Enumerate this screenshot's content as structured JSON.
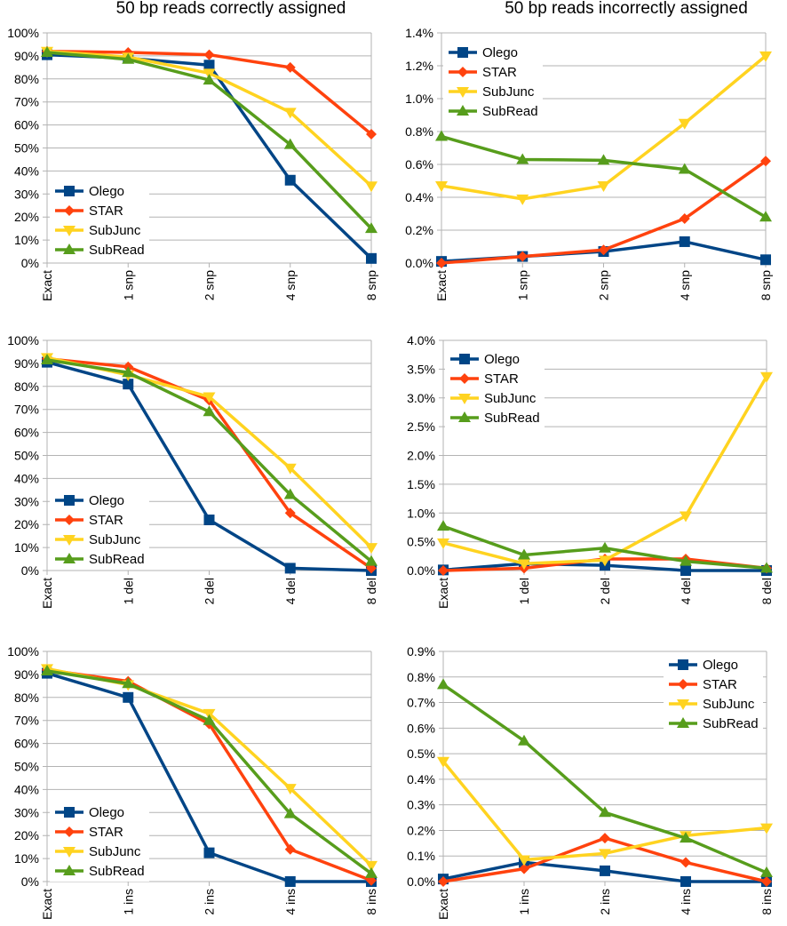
{
  "colors": {
    "Olego": "#004586",
    "STAR": "#ff420e",
    "SubJunc": "#ffd320",
    "SubRead": "#579d1c",
    "grid": "#b3b3b3"
  },
  "chart_data": [
    {
      "type": "line",
      "title": "50 bp reads correctly assigned",
      "categories": [
        "Exact",
        "1 snp",
        "2 snp",
        "4 snp",
        "8 snp"
      ],
      "ylim": [
        0,
        100
      ],
      "yticks": [
        "0%",
        "10%",
        "20%",
        "30%",
        "40%",
        "50%",
        "60%",
        "70%",
        "80%",
        "90%",
        "100%"
      ],
      "ystep": 10,
      "unit": "%",
      "grid": true,
      "legend_position": "bottom-left",
      "series": [
        {
          "name": "Olego",
          "marker": "square",
          "values": [
            90.5,
            89,
            86,
            36,
            2
          ]
        },
        {
          "name": "STAR",
          "marker": "diamond",
          "values": [
            92,
            91.5,
            90.5,
            85,
            56
          ]
        },
        {
          "name": "SubJunc",
          "marker": "triangle-down",
          "values": [
            92,
            89.5,
            82.5,
            65.5,
            33.5
          ]
        },
        {
          "name": "SubRead",
          "marker": "triangle-up",
          "values": [
            91.5,
            88.5,
            79.5,
            51.5,
            15
          ]
        }
      ]
    },
    {
      "type": "line",
      "title": "50 bp reads incorrectly assigned",
      "categories": [
        "Exact",
        "1 snp",
        "2 snp",
        "4 snp",
        "8 snp"
      ],
      "ylim": [
        0,
        1.4
      ],
      "yticks": [
        "0.0%",
        "0.2%",
        "0.4%",
        "0.6%",
        "0.8%",
        "1.0%",
        "1.2%",
        "1.4%"
      ],
      "ystep": 0.2,
      "unit": "%",
      "grid": true,
      "legend_position": "top-left",
      "series": [
        {
          "name": "Olego",
          "marker": "square",
          "values": [
            0.01,
            0.04,
            0.07,
            0.13,
            0.02
          ]
        },
        {
          "name": "STAR",
          "marker": "diamond",
          "values": [
            0.0,
            0.04,
            0.08,
            0.27,
            0.62
          ]
        },
        {
          "name": "SubJunc",
          "marker": "triangle-down",
          "values": [
            0.47,
            0.39,
            0.47,
            0.85,
            1.26
          ]
        },
        {
          "name": "SubRead",
          "marker": "triangle-up",
          "values": [
            0.77,
            0.63,
            0.625,
            0.57,
            0.28
          ]
        }
      ]
    },
    {
      "type": "line",
      "title": "",
      "categories": [
        "Exact",
        "1 del",
        "2 del",
        "4 del",
        "8 del"
      ],
      "ylim": [
        0,
        100
      ],
      "yticks": [
        "0%",
        "10%",
        "20%",
        "30%",
        "40%",
        "50%",
        "60%",
        "70%",
        "80%",
        "90%",
        "100%"
      ],
      "ystep": 10,
      "unit": "%",
      "grid": true,
      "legend_position": "bottom-left",
      "series": [
        {
          "name": "Olego",
          "marker": "square",
          "values": [
            90.5,
            81,
            22,
            1,
            0
          ]
        },
        {
          "name": "STAR",
          "marker": "diamond",
          "values": [
            92,
            88.5,
            74,
            25,
            1
          ]
        },
        {
          "name": "SubJunc",
          "marker": "triangle-down",
          "values": [
            92.5,
            85,
            75.5,
            44.5,
            10
          ]
        },
        {
          "name": "SubRead",
          "marker": "triangle-up",
          "values": [
            91.5,
            86,
            69,
            33,
            4
          ]
        }
      ]
    },
    {
      "type": "line",
      "title": "",
      "categories": [
        "Exact",
        "1 del",
        "2 del",
        "4 del",
        "8 del"
      ],
      "ylim": [
        0,
        4.0
      ],
      "yticks": [
        "0.0%",
        "0.5%",
        "1.0%",
        "1.5%",
        "2.0%",
        "2.5%",
        "3.0%",
        "3.5%",
        "4.0%"
      ],
      "ystep": 0.5,
      "unit": "%",
      "grid": true,
      "legend_position": "top-left",
      "series": [
        {
          "name": "Olego",
          "marker": "square",
          "values": [
            0.01,
            0.12,
            0.09,
            0.0,
            0.0
          ]
        },
        {
          "name": "STAR",
          "marker": "diamond",
          "values": [
            0.0,
            0.04,
            0.2,
            0.2,
            0.04
          ]
        },
        {
          "name": "SubJunc",
          "marker": "triangle-down",
          "values": [
            0.48,
            0.12,
            0.18,
            0.95,
            3.37
          ]
        },
        {
          "name": "SubRead",
          "marker": "triangle-up",
          "values": [
            0.77,
            0.27,
            0.39,
            0.16,
            0.04
          ]
        }
      ]
    },
    {
      "type": "line",
      "title": "",
      "categories": [
        "Exact",
        "1 ins",
        "2 ins",
        "4 ins",
        "8 ins"
      ],
      "ylim": [
        0,
        100
      ],
      "yticks": [
        "0%",
        "10%",
        "20%",
        "30%",
        "40%",
        "50%",
        "60%",
        "70%",
        "80%",
        "90%",
        "100%"
      ],
      "ystep": 10,
      "unit": "%",
      "grid": true,
      "legend_position": "bottom-left",
      "series": [
        {
          "name": "Olego",
          "marker": "square",
          "values": [
            90.5,
            80,
            12.5,
            0,
            0
          ]
        },
        {
          "name": "STAR",
          "marker": "diamond",
          "values": [
            92,
            87,
            68.5,
            14,
            0.5
          ]
        },
        {
          "name": "SubJunc",
          "marker": "triangle-down",
          "values": [
            92.5,
            85.5,
            73,
            40.5,
            7
          ]
        },
        {
          "name": "SubRead",
          "marker": "triangle-up",
          "values": [
            91.5,
            86,
            70,
            29.5,
            3.5
          ]
        }
      ]
    },
    {
      "type": "line",
      "title": "",
      "categories": [
        "Exact",
        "1 ins",
        "2 ins",
        "4 ins",
        "8 ins"
      ],
      "ylim": [
        0,
        0.9
      ],
      "yticks": [
        "0.0%",
        "0.1%",
        "0.2%",
        "0.3%",
        "0.4%",
        "0.5%",
        "0.6%",
        "0.7%",
        "0.8%",
        "0.9%"
      ],
      "ystep": 0.1,
      "unit": "%",
      "grid": true,
      "legend_position": "top-right",
      "series": [
        {
          "name": "Olego",
          "marker": "square",
          "values": [
            0.01,
            0.075,
            0.042,
            0.0,
            0.0
          ]
        },
        {
          "name": "STAR",
          "marker": "diamond",
          "values": [
            0.0,
            0.05,
            0.17,
            0.075,
            0.0
          ]
        },
        {
          "name": "SubJunc",
          "marker": "triangle-down",
          "values": [
            0.47,
            0.085,
            0.11,
            0.18,
            0.21
          ]
        },
        {
          "name": "SubRead",
          "marker": "triangle-up",
          "values": [
            0.77,
            0.55,
            0.27,
            0.17,
            0.035
          ]
        }
      ]
    }
  ]
}
